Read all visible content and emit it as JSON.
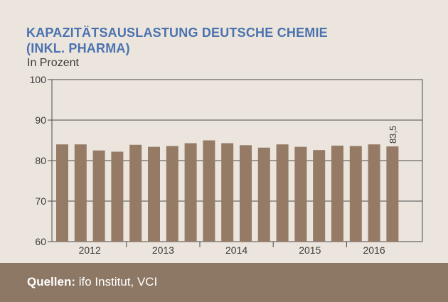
{
  "title_line1": "KAPAZITÄTSAUSLASTUNG DEUTSCHE CHEMIE",
  "title_line2": "(INKL. PHARMA)",
  "subtitle": "In Prozent",
  "footer": {
    "label": "Quellen:",
    "text": " ifo Institut, VCI"
  },
  "colors": {
    "bar": "#957a66",
    "title": "#4a72b0",
    "footer": "#8c7865",
    "background": "#ece5dd"
  },
  "chart_data": {
    "type": "bar",
    "ylim": [
      60,
      100
    ],
    "yticks": [
      60,
      70,
      80,
      90,
      100
    ],
    "grid": true,
    "x_labels": [
      "2012",
      "2013",
      "2014",
      "2015",
      "2016"
    ],
    "quarters_per_year": 4,
    "values": [
      84.0,
      84.0,
      82.5,
      82.2,
      83.9,
      83.4,
      83.6,
      84.3,
      85.0,
      84.3,
      83.8,
      83.2,
      84.0,
      83.4,
      82.6,
      83.7,
      83.6,
      84.0,
      83.5
    ],
    "annotation": {
      "index": 18,
      "text": "83,5"
    }
  }
}
